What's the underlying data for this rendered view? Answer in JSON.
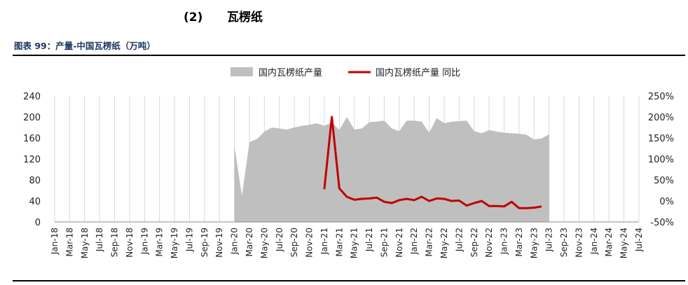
{
  "heading": {
    "number": "(2)",
    "title": "瓦楞纸"
  },
  "caption": "图表 99：产量-中国瓦楞纸（万吨）",
  "chart_data": {
    "type": "area",
    "left_axis": {
      "ticks": [
        "0",
        "40",
        "80",
        "120",
        "160",
        "200",
        "240"
      ],
      "ylim": [
        0,
        240
      ]
    },
    "right_axis": {
      "ticks": [
        "-50%",
        "0%",
        "50%",
        "100%",
        "150%",
        "200%",
        "250%"
      ],
      "ylim": [
        -50,
        250
      ]
    },
    "x_ticks": [
      "Jan-18",
      "Mar-18",
      "May-18",
      "Jul-18",
      "Sep-18",
      "Nov-18",
      "Jan-19",
      "Mar-19",
      "May-19",
      "Jul-19",
      "Sep-19",
      "Nov-19",
      "Jan-20",
      "Mar-20",
      "May-20",
      "Jul-20",
      "Sep-20",
      "Nov-20",
      "Jan-21",
      "Mar-21",
      "May-21",
      "Jul-21",
      "Sep-21",
      "Nov-21",
      "Jan-22",
      "Mar-22",
      "May-22",
      "Jul-22",
      "Sep-22",
      "Nov-22",
      "Jan-23",
      "Mar-23",
      "May-23",
      "Jul-23",
      "Sep-23",
      "Nov-23",
      "Jan-24",
      "Mar-24",
      "May-24",
      "Jul-24"
    ],
    "series": [
      {
        "name": "国内瓦楞纸产量",
        "kind": "area",
        "axis": "left",
        "color": "#bfbfbf",
        "start_index": 24,
        "values": [
          145,
          50,
          152,
          158,
          172,
          180,
          178,
          176,
          180,
          183,
          185,
          188,
          183,
          190,
          175,
          200,
          176,
          178,
          190,
          191,
          193,
          178,
          173,
          193,
          193,
          191,
          170,
          198,
          188,
          191,
          192,
          193,
          173,
          169,
          175,
          172,
          170,
          169,
          168,
          166,
          157,
          159,
          167
        ]
      },
      {
        "name": "国内瓦楞纸产量 同比",
        "kind": "line",
        "axis": "right",
        "color": "#c00000",
        "start_index": 36,
        "values": [
          28,
          200,
          30,
          10,
          3,
          5,
          6,
          8,
          -2,
          -5,
          2,
          5,
          2,
          10,
          0,
          6,
          5,
          0,
          1,
          -11,
          -5,
          0,
          -12,
          -12,
          -13,
          -2,
          -17,
          -17,
          -16,
          -13
        ]
      }
    ],
    "legend": "top-center",
    "grid": "vertical"
  }
}
